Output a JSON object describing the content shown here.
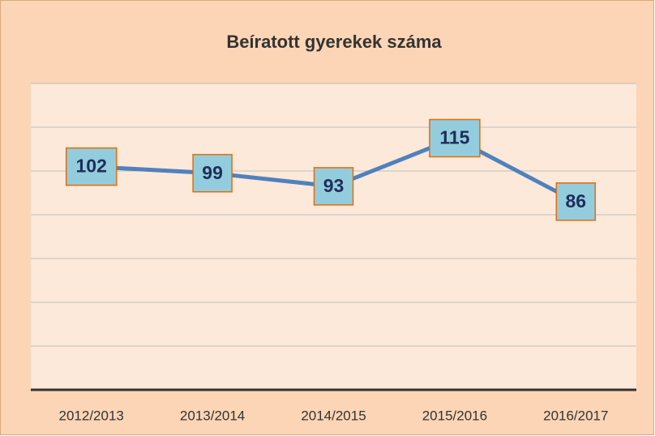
{
  "chart_data": {
    "type": "line",
    "title": "Beíratott gyerekek száma",
    "categories": [
      "2012/2013",
      "2013/2014",
      "2014/2015",
      "2015/2016",
      "2016/2017"
    ],
    "series": [
      {
        "name": "Beíratott gyerekek",
        "color": "#4f81bd",
        "values": [
          102,
          99,
          93,
          115,
          86
        ]
      }
    ],
    "ylim": [
      0,
      140
    ],
    "yticks": [
      0,
      20,
      40,
      60,
      80,
      100,
      120,
      140
    ],
    "grid": true,
    "data_labels": true
  }
}
